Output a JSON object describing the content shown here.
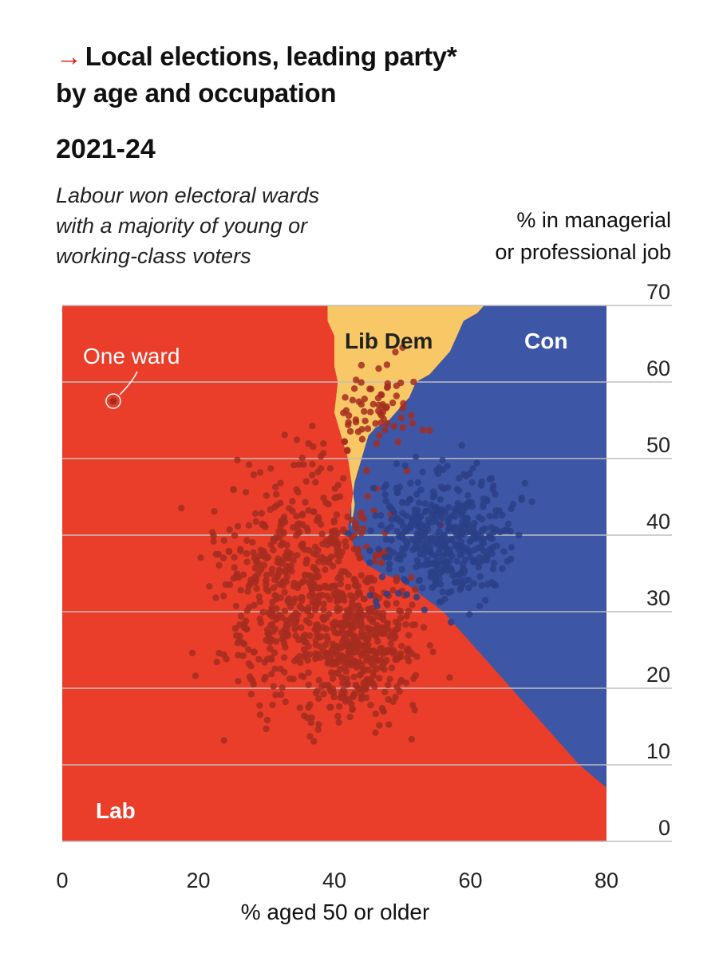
{
  "header": {
    "arrow": "→",
    "title_line1": "Local elections, leading party*",
    "title_line2": "by age and occupation",
    "subtitle": "2021-24",
    "caption_line1": "Labour won electoral wards",
    "caption_line2": "with a majority of young or",
    "caption_line3": "working-class voters"
  },
  "colors": {
    "lab": "#ea3e2a",
    "con": "#3d56a6",
    "libdem": "#f7c865",
    "dots": "#a52d20",
    "arrow": "#e3120b",
    "grid": "#bfbfbf"
  },
  "chart_data": {
    "type": "scatter",
    "title": "Local elections, leading party* by age and occupation",
    "subtitle": "2021-24",
    "xlabel": "% aged 50 or older",
    "ylabel_line1": "% in managerial",
    "ylabel_line2": "or professional job",
    "xlim": [
      0,
      80
    ],
    "ylim": [
      0,
      70
    ],
    "x_ticks": [
      0,
      20,
      40,
      60,
      80
    ],
    "y_ticks": [
      0,
      10,
      20,
      30,
      40,
      50,
      60,
      70
    ],
    "grid": "horizontal",
    "regions": [
      {
        "name": "Lab",
        "color": "#ea3e2a"
      },
      {
        "name": "Lib Dem",
        "color": "#f7c865"
      },
      {
        "name": "Con",
        "color": "#3d56a6"
      }
    ],
    "boundaries": {
      "lab_con": [
        [
          42,
          41
        ],
        [
          43,
          38
        ],
        [
          45,
          36
        ],
        [
          47,
          35
        ],
        [
          50,
          34
        ],
        [
          53,
          32
        ],
        [
          56,
          30
        ],
        [
          57,
          29
        ],
        [
          59,
          27
        ],
        [
          60,
          26
        ],
        [
          62,
          24
        ],
        [
          64,
          22
        ],
        [
          66,
          20
        ],
        [
          68,
          18
        ],
        [
          70,
          16
        ],
        [
          72,
          14
        ],
        [
          74,
          12
        ],
        [
          76,
          10
        ],
        [
          78,
          8.5
        ],
        [
          80,
          7
        ]
      ],
      "lab_libdem": [
        [
          39,
          70
        ],
        [
          39,
          68
        ],
        [
          40,
          66
        ],
        [
          40,
          62
        ],
        [
          40.5,
          60
        ],
        [
          40,
          56
        ],
        [
          41,
          53
        ],
        [
          42,
          50
        ],
        [
          42.5,
          47
        ],
        [
          43,
          44
        ],
        [
          42.5,
          41
        ]
      ],
      "libdem_con": [
        [
          62,
          70
        ],
        [
          61,
          69
        ],
        [
          59,
          68
        ],
        [
          58,
          66
        ],
        [
          57,
          64
        ],
        [
          55,
          62
        ],
        [
          54,
          61
        ],
        [
          52,
          60
        ],
        [
          51,
          58
        ],
        [
          50,
          57
        ],
        [
          48,
          55
        ],
        [
          46,
          54
        ],
        [
          45,
          53
        ],
        [
          44,
          50
        ],
        [
          43,
          47
        ],
        [
          42.5,
          44
        ],
        [
          42,
          41
        ]
      ]
    },
    "annotations": [
      {
        "text": "One ward",
        "x": 7.5,
        "y": 57.5
      },
      {
        "text": "Lab",
        "x": 5,
        "y": 3
      },
      {
        "text": "Lib Dem",
        "x": 50,
        "y": 66
      },
      {
        "text": "Con",
        "x": 71,
        "y": 66
      }
    ],
    "clusters": [
      {
        "name": "Lab",
        "count": 620,
        "center": [
          35,
          33
        ],
        "spread": [
          9,
          11
        ],
        "xlim": [
          3,
          56
        ],
        "ylim": [
          9,
          68
        ]
      },
      {
        "name": "Lab",
        "count": 330,
        "center": [
          44,
          25
        ],
        "spread": [
          6,
          6
        ],
        "xlim": [
          30,
          57
        ],
        "ylim": [
          10,
          41
        ]
      },
      {
        "name": "Lib Dem",
        "count": 70,
        "center": [
          46,
          57
        ],
        "spread": [
          4,
          4
        ],
        "xlim": [
          40,
          58
        ],
        "ylim": [
          48,
          66
        ]
      },
      {
        "name": "Con",
        "count": 440,
        "center": [
          56,
          40
        ],
        "spread": [
          7,
          6
        ],
        "xlim": [
          42,
          76
        ],
        "ylim": [
          27,
          60
        ]
      }
    ]
  }
}
